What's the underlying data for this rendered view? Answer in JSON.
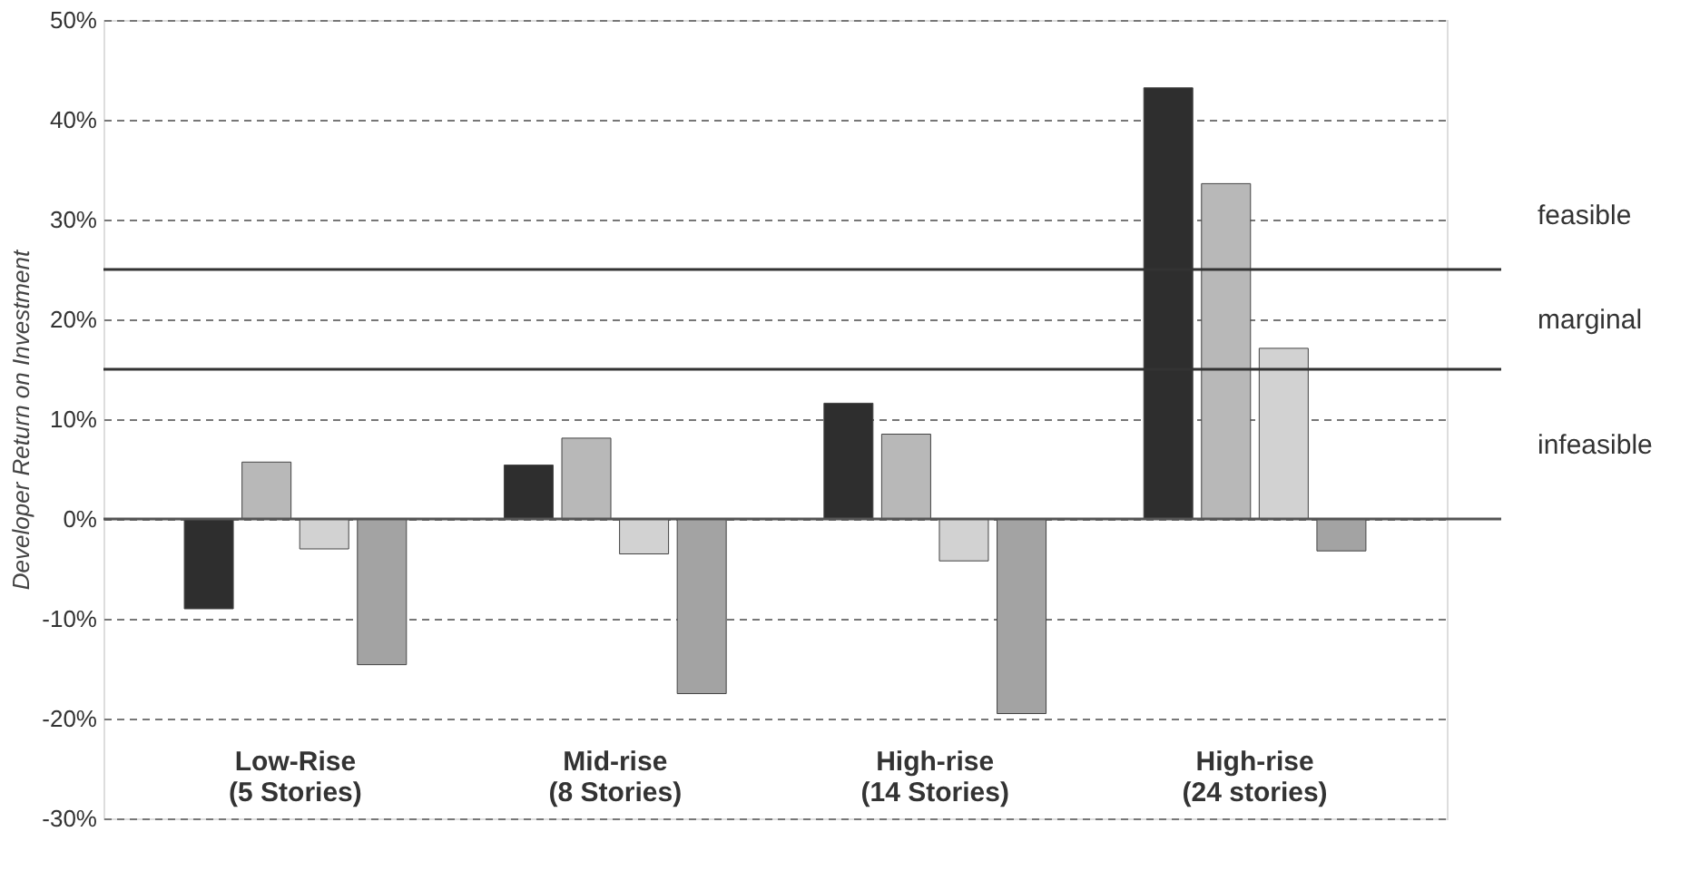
{
  "chart_data": {
    "type": "bar",
    "ylabel": "Developer Return on Investment",
    "categories": [
      "Low-Rise\n(5 Stories)",
      "Mid-rise\n(8 Stories)",
      "High-rise\n(14 Stories)",
      "High-rise\n(24 stories)"
    ],
    "series": [
      {
        "color": "#2e2e2e",
        "values": [
          -9,
          5.4,
          11.6,
          43.2
        ]
      },
      {
        "color": "#b8b8b8",
        "values": [
          5.7,
          8.1,
          8.5,
          33.6
        ]
      },
      {
        "color": "#d2d2d2",
        "values": [
          -3,
          -3.5,
          -4.2,
          17.1
        ]
      },
      {
        "color": "#a3a3a3",
        "values": [
          -14.6,
          -17.5,
          -19.5,
          -3.2
        ]
      }
    ],
    "ylim": [
      -30,
      50
    ],
    "yticks": [
      {
        "value": -30,
        "label": "-30%"
      },
      {
        "value": -20,
        "label": "-20%"
      },
      {
        "value": -10,
        "label": "-10%"
      },
      {
        "value": 0,
        "label": "0%"
      },
      {
        "value": 10,
        "label": "10%"
      },
      {
        "value": 20,
        "label": "20%"
      },
      {
        "value": 30,
        "label": "30%"
      },
      {
        "value": 40,
        "label": "40%"
      },
      {
        "value": 50,
        "label": "50%"
      }
    ],
    "grid": "y",
    "ref_lines": [
      {
        "axis": "y",
        "value": 0,
        "color": "#555555"
      },
      {
        "axis": "y",
        "value": 15,
        "color": "#333333"
      },
      {
        "axis": "y",
        "value": 25,
        "color": "#333333"
      }
    ],
    "annotations": [
      "feasible",
      "marginal",
      "infeasible"
    ]
  }
}
